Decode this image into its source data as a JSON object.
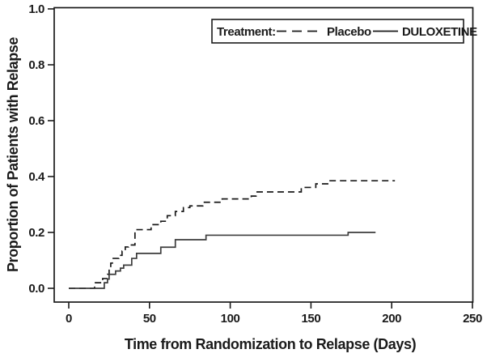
{
  "chart_data": {
    "type": "line",
    "subtype": "step-survival-curve",
    "title": "",
    "xlabel": "Time from Randomization to Relapse (Days)",
    "ylabel": "Proportion of Patients with Relapse",
    "xlim": [
      0,
      250
    ],
    "ylim": [
      0,
      1
    ],
    "grid": false,
    "frame": true,
    "x_tick_values": [
      0,
      50,
      100,
      150,
      200,
      250
    ],
    "x_tick_labels": [
      "0",
      "50",
      "100",
      "150",
      "200",
      "250"
    ],
    "y_tick_values": [
      0.0,
      0.2,
      0.4,
      0.6,
      0.8,
      1.0
    ],
    "y_tick_labels": [
      "0.0",
      "0.2",
      "0.4",
      "0.6",
      "0.8",
      "1.0"
    ],
    "legend": {
      "position": "top-right-inside",
      "title": "Treatment:",
      "entries": [
        {
          "label": "Placebo",
          "style": "dashed"
        },
        {
          "label": "DULOXETINE",
          "style": "solid"
        }
      ]
    },
    "series": [
      {
        "name": "Placebo",
        "line_style": "dashed",
        "color": "#1a1a1a",
        "end_x": 202,
        "points": [
          [
            0,
            0.0
          ],
          [
            16,
            0.02
          ],
          [
            21,
            0.035
          ],
          [
            24,
            0.05
          ],
          [
            25,
            0.07
          ],
          [
            26,
            0.09
          ],
          [
            27,
            0.107
          ],
          [
            31,
            0.118
          ],
          [
            33,
            0.133
          ],
          [
            35,
            0.148
          ],
          [
            37,
            0.155
          ],
          [
            41,
            0.21
          ],
          [
            51,
            0.228
          ],
          [
            57,
            0.24
          ],
          [
            61,
            0.26
          ],
          [
            66,
            0.275
          ],
          [
            71,
            0.289
          ],
          [
            75,
            0.295
          ],
          [
            83,
            0.308
          ],
          [
            95,
            0.32
          ],
          [
            113,
            0.33
          ],
          [
            116,
            0.345
          ],
          [
            144,
            0.361
          ],
          [
            153,
            0.374
          ],
          [
            161,
            0.385
          ]
        ]
      },
      {
        "name": "DULOXETINE",
        "line_style": "solid",
        "color": "#3c3c3c",
        "end_x": 190,
        "points": [
          [
            0,
            0.0
          ],
          [
            22,
            0.02
          ],
          [
            24,
            0.033
          ],
          [
            25,
            0.05
          ],
          [
            29,
            0.062
          ],
          [
            32,
            0.072
          ],
          [
            34,
            0.083
          ],
          [
            39,
            0.107
          ],
          [
            42,
            0.125
          ],
          [
            57,
            0.147
          ],
          [
            66,
            0.174
          ],
          [
            85,
            0.19
          ],
          [
            173,
            0.2
          ]
        ]
      }
    ]
  }
}
